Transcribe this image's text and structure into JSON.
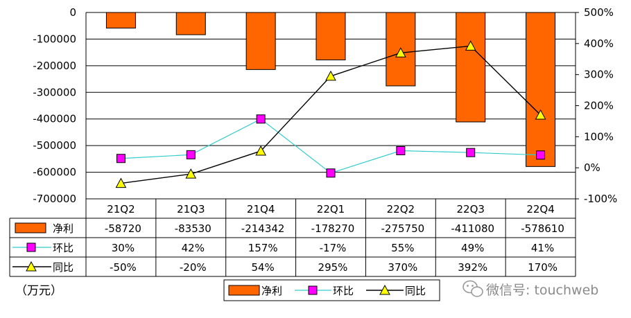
{
  "chart_data": {
    "type": "bar",
    "categories": [
      "21Q2",
      "21Q3",
      "21Q4",
      "22Q1",
      "22Q2",
      "22Q3",
      "22Q4"
    ],
    "series": [
      {
        "name": "净利",
        "type": "bar",
        "axis": "left",
        "values": [
          -58720,
          -83530,
          -214342,
          -178270,
          -275750,
          -411080,
          -578610
        ],
        "labels": [
          "-58720",
          "-83530",
          "-214342",
          "-178270",
          "-275750",
          "-411080",
          "-578610"
        ]
      },
      {
        "name": "环比",
        "type": "line",
        "axis": "right",
        "values": [
          30,
          42,
          157,
          -17,
          55,
          49,
          41
        ],
        "labels": [
          "30%",
          "42%",
          "157%",
          "-17%",
          "55%",
          "49%",
          "41%"
        ]
      },
      {
        "name": "同比",
        "type": "line",
        "axis": "right",
        "values": [
          -50,
          -20,
          54,
          295,
          370,
          392,
          170
        ],
        "labels": [
          "-50%",
          "-20%",
          "54%",
          "295%",
          "370%",
          "392%",
          "170%"
        ]
      }
    ],
    "y_left": {
      "min": -700000,
      "max": 0,
      "ticks": [
        "0",
        "-100000",
        "-200000",
        "-300000",
        "-400000",
        "-500000",
        "-600000",
        "-700000"
      ],
      "tick_values": [
        0,
        -100000,
        -200000,
        -300000,
        -400000,
        -500000,
        -600000,
        -700000
      ]
    },
    "y_right": {
      "min": -100,
      "max": 500,
      "ticks": [
        "500%",
        "400%",
        "300%",
        "200%",
        "100%",
        "0%",
        "-100%"
      ],
      "tick_values": [
        500,
        400,
        300,
        200,
        100,
        0,
        -100
      ]
    },
    "grid": true,
    "legend_position": "bottom-center",
    "data_table": true,
    "colors": {
      "bar": "#FF6600",
      "mom_line": "#33CCCC",
      "mom_marker": "#FF00FF",
      "yoy_line": "#000000",
      "yoy_marker": "#FFFF00"
    }
  },
  "unit_label": "（万元）",
  "watermark": "微信号: touchweb"
}
